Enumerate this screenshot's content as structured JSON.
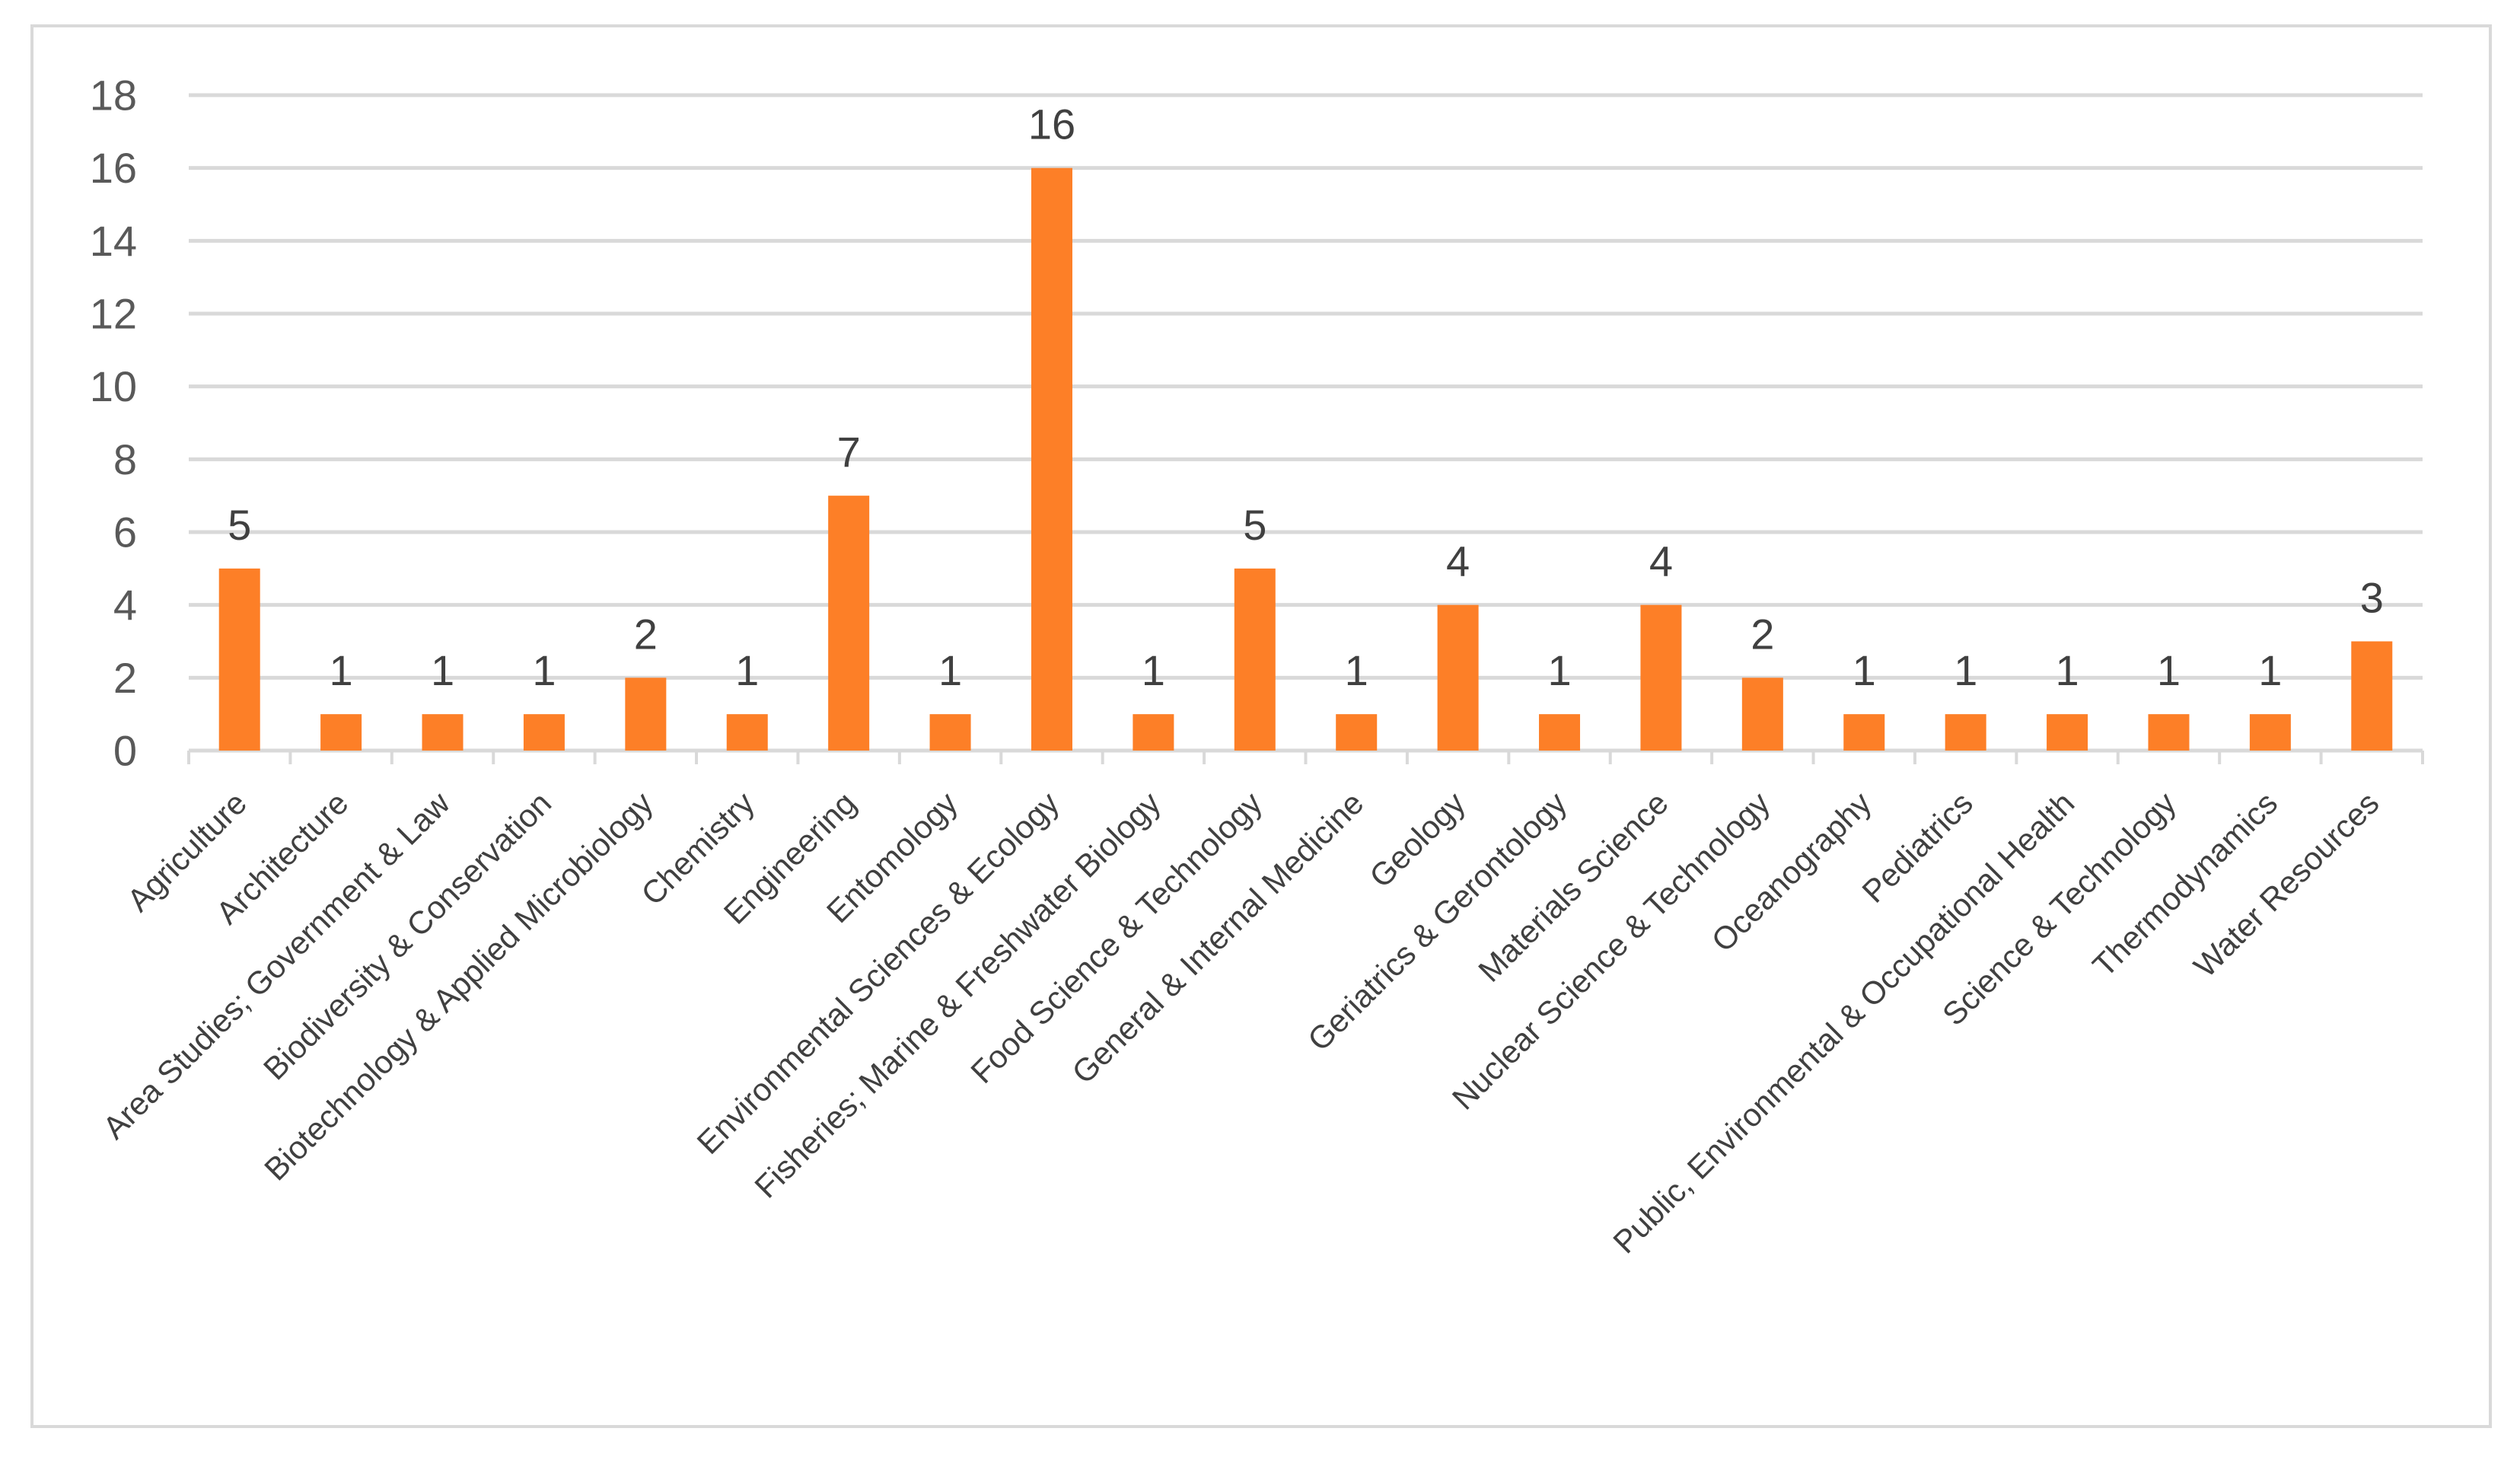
{
  "chart_data": {
    "type": "bar",
    "title": "",
    "xlabel": "",
    "ylabel": "",
    "ylim": [
      0,
      18
    ],
    "yticks": [
      0,
      2,
      4,
      6,
      8,
      10,
      12,
      14,
      16,
      18
    ],
    "grid": true,
    "legend": "none",
    "bar_color": "#fd7f27",
    "categories": [
      "Agriculture",
      "Architecture",
      "Area Studies; Government & Law",
      "Biodiversity & Conservation",
      "Biotechnology & Applied Microbiology",
      "Chemistry",
      "Engineering",
      "Entomology",
      "Environmental Sciences & Ecology",
      "Fisheries; Marine & Freshwater Biology",
      "Food Science & Technology",
      "General & Internal Medicine",
      "Geology",
      "Geriatrics & Gerontology",
      "Materials Science",
      "Nuclear Science & Technology",
      "Oceanography",
      "Pediatrics",
      "Public, Environmental & Occupational Health",
      "Science & Technology",
      "Thermodynamics",
      "Water Resources"
    ],
    "values": [
      5,
      1,
      1,
      1,
      2,
      1,
      7,
      1,
      16,
      1,
      5,
      1,
      4,
      1,
      4,
      2,
      1,
      1,
      1,
      1,
      1,
      3
    ]
  }
}
